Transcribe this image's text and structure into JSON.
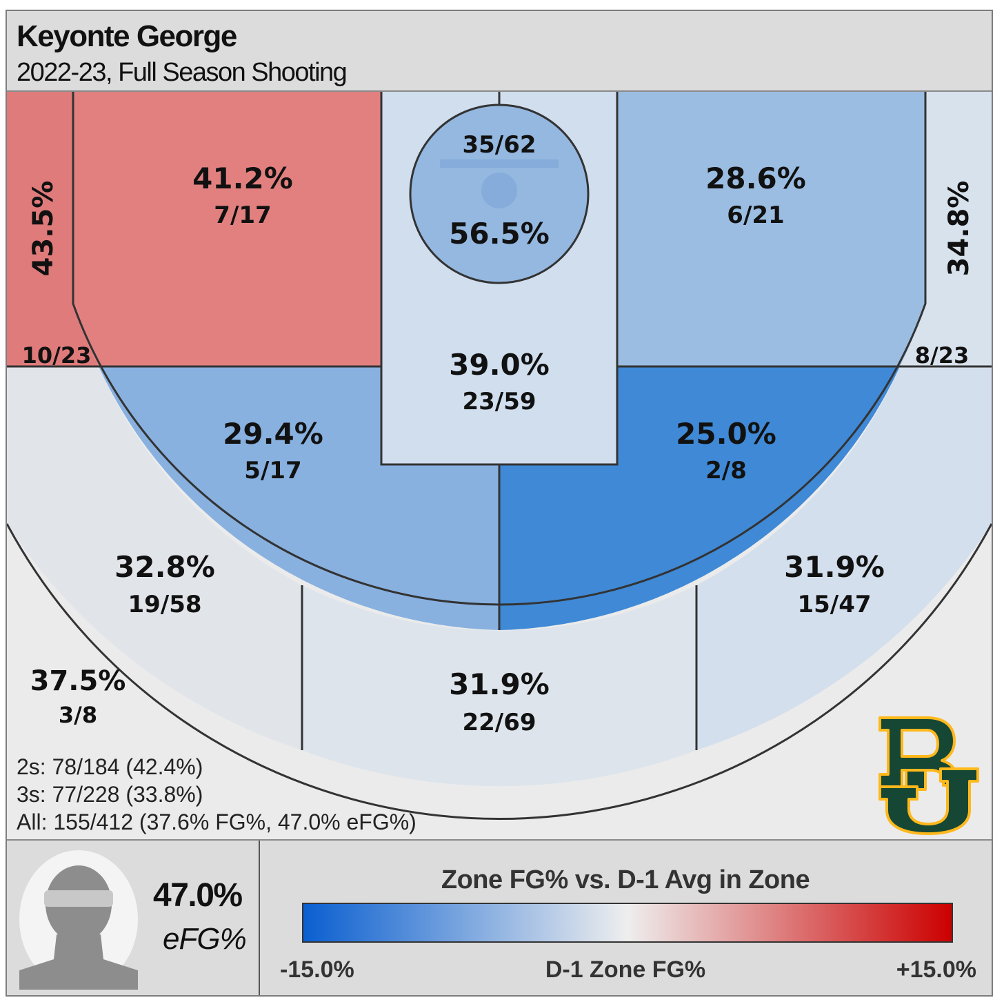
{
  "header": {
    "player_name": "Keyonte George",
    "subtitle": "2022-23, Full Season Shooting"
  },
  "chart_data": {
    "type": "heatmap",
    "title": "Keyonte George",
    "subtitle": "2022-23, Full Season Shooting",
    "zones": [
      {
        "id": "rim",
        "pct": "56.5%",
        "made": 35,
        "att": 62,
        "label": "35/62",
        "color": "#94b8e0"
      },
      {
        "id": "paint",
        "pct": "39.0%",
        "made": 23,
        "att": 59,
        "label": "23/59",
        "color": "#d0deee"
      },
      {
        "id": "short-left-baseline",
        "pct": "43.5%",
        "made": 10,
        "att": 23,
        "label": "10/23",
        "color": "#e07b7b"
      },
      {
        "id": "short-left",
        "pct": "41.2%",
        "made": 7,
        "att": 17,
        "label": "7/17",
        "color": "#e28080"
      },
      {
        "id": "short-right",
        "pct": "28.6%",
        "made": 6,
        "att": 21,
        "label": "6/21",
        "color": "#9bbde2"
      },
      {
        "id": "short-right-baseline",
        "pct": "34.8%",
        "made": 8,
        "att": 23,
        "label": "8/23",
        "color": "#d8e2ed"
      },
      {
        "id": "mid-left",
        "pct": "29.4%",
        "made": 5,
        "att": 17,
        "label": "5/17",
        "color": "#88b1e0"
      },
      {
        "id": "mid-right",
        "pct": "25.0%",
        "made": 2,
        "att": 8,
        "label": "2/8",
        "color": "#3f89d6"
      },
      {
        "id": "three-left-wing",
        "pct": "32.8%",
        "made": 19,
        "att": 58,
        "label": "19/58",
        "color": "#e1e5ea"
      },
      {
        "id": "three-top",
        "pct": "31.9%",
        "made": 22,
        "att": 69,
        "label": "22/69",
        "color": "#dde4ec"
      },
      {
        "id": "three-right-wing",
        "pct": "31.9%",
        "made": 15,
        "att": 47,
        "label": "15/47",
        "color": "#d3dfec"
      },
      {
        "id": "heave",
        "pct": "37.5%",
        "made": 3,
        "att": 8,
        "label": "3/8",
        "color": "#ebebeb"
      }
    ],
    "legend": {
      "title": "Zone FG% vs. D-1 Avg in Zone",
      "min_label": "-15.0%",
      "mid_label": "D-1 Zone FG%",
      "max_label": "+15.0%",
      "colors": [
        "#0a5fd0",
        "#eeeeee",
        "#cc0000"
      ]
    }
  },
  "summary": {
    "twos": "2s: 78/184 (42.4%)",
    "threes": "3s: 77/228 (33.8%)",
    "all": "All: 155/412 (37.6% FG%, 47.0% eFG%)"
  },
  "player_panel": {
    "efg_value": "47.0%",
    "efg_label": "eFG%"
  },
  "colors": {
    "court_line": "#333333",
    "background": "#e5e5e5",
    "logo_green": "#154734",
    "logo_gold": "#ffb81c"
  }
}
